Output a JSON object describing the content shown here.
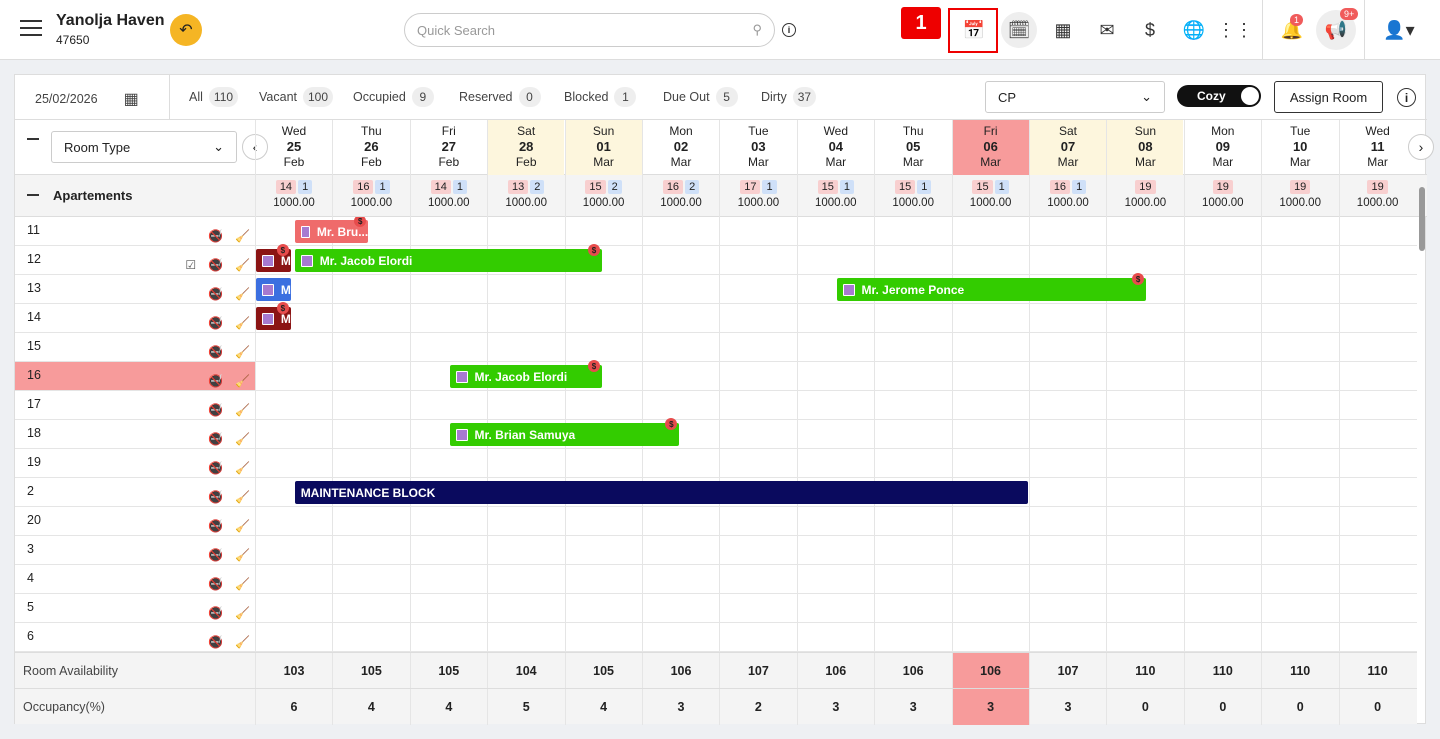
{
  "header": {
    "property_name": "Yanolja Haven",
    "property_id": "47650",
    "search_placeholder": "Quick Search",
    "annotation_tag": "1",
    "notif_count": "1",
    "announce_count": "9+"
  },
  "filters": {
    "date": "25/02/2026",
    "items": [
      {
        "label": "All",
        "count": "110"
      },
      {
        "label": "Vacant",
        "count": "100"
      },
      {
        "label": "Occupied",
        "count": "9"
      },
      {
        "label": "Reserved",
        "count": "0"
      },
      {
        "label": "Blocked",
        "count": "1"
      },
      {
        "label": "Due Out",
        "count": "5"
      },
      {
        "label": "Dirty",
        "count": "37"
      }
    ],
    "rate_plan": "CP",
    "view_toggle": "Cozy",
    "assign_btn": "Assign Room"
  },
  "grid": {
    "room_type_label": "Room Type",
    "group_name": "Apartements",
    "days": [
      {
        "wd": "Wed",
        "d": "25",
        "m": "Feb",
        "t": ""
      },
      {
        "wd": "Thu",
        "d": "26",
        "m": "Feb",
        "t": ""
      },
      {
        "wd": "Fri",
        "d": "27",
        "m": "Feb",
        "t": ""
      },
      {
        "wd": "Sat",
        "d": "28",
        "m": "Feb",
        "t": "w"
      },
      {
        "wd": "Sun",
        "d": "01",
        "m": "Mar",
        "t": "w"
      },
      {
        "wd": "Mon",
        "d": "02",
        "m": "Mar",
        "t": ""
      },
      {
        "wd": "Tue",
        "d": "03",
        "m": "Mar",
        "t": ""
      },
      {
        "wd": "Wed",
        "d": "04",
        "m": "Mar",
        "t": ""
      },
      {
        "wd": "Thu",
        "d": "05",
        "m": "Mar",
        "t": ""
      },
      {
        "wd": "Fri",
        "d": "06",
        "m": "Mar",
        "t": "today"
      },
      {
        "wd": "Sat",
        "d": "07",
        "m": "Mar",
        "t": "w"
      },
      {
        "wd": "Sun",
        "d": "08",
        "m": "Mar",
        "t": "w"
      },
      {
        "wd": "Mon",
        "d": "09",
        "m": "Mar",
        "t": ""
      },
      {
        "wd": "Tue",
        "d": "10",
        "m": "Mar",
        "t": ""
      },
      {
        "wd": "Wed",
        "d": "11",
        "m": "Mar",
        "t": ""
      }
    ],
    "group_avail": [
      {
        "a": "14",
        "b": "1",
        "r": "1000.00"
      },
      {
        "a": "16",
        "b": "1",
        "r": "1000.00"
      },
      {
        "a": "14",
        "b": "1",
        "r": "1000.00"
      },
      {
        "a": "13",
        "b": "2",
        "r": "1000.00"
      },
      {
        "a": "15",
        "b": "2",
        "r": "1000.00"
      },
      {
        "a": "16",
        "b": "2",
        "r": "1000.00"
      },
      {
        "a": "17",
        "b": "1",
        "r": "1000.00"
      },
      {
        "a": "15",
        "b": "1",
        "r": "1000.00"
      },
      {
        "a": "15",
        "b": "1",
        "r": "1000.00"
      },
      {
        "a": "15",
        "b": "1",
        "r": "1000.00"
      },
      {
        "a": "16",
        "b": "1",
        "r": "1000.00"
      },
      {
        "a": "19",
        "b": "",
        "r": "1000.00"
      },
      {
        "a": "19",
        "b": "",
        "r": "1000.00"
      },
      {
        "a": "19",
        "b": "",
        "r": "1000.00"
      },
      {
        "a": "19",
        "b": "",
        "r": "1000.00"
      }
    ],
    "rooms": [
      "11",
      "12",
      "13",
      "14",
      "15",
      "16",
      "17",
      "18",
      "19",
      "2",
      "20",
      "3",
      "4",
      "5",
      "6"
    ],
    "bookings": [
      {
        "row": 0,
        "start": 0.5,
        "len": 0.95,
        "label": "Mr. Bru...",
        "color": "#ef6b6b",
        "dol": true
      },
      {
        "row": 1,
        "start": 0,
        "len": 0.45,
        "label": "M",
        "color": "#8b1414",
        "dol": true
      },
      {
        "row": 1,
        "start": 0.5,
        "len": 3.97,
        "label": "Mr. Jacob Elordi",
        "color": "#33cc00",
        "dol": true
      },
      {
        "row": 2,
        "start": 0,
        "len": 0.45,
        "label": "M",
        "color": "#3b6fe0",
        "dol": false
      },
      {
        "row": 2,
        "start": 7.5,
        "len": 4.0,
        "label": "Mr. Jerome Ponce",
        "color": "#33cc00",
        "dol": true
      },
      {
        "row": 3,
        "start": 0,
        "len": 0.45,
        "label": "M",
        "color": "#8b1414",
        "dol": true
      },
      {
        "row": 5,
        "start": 2.5,
        "len": 1.97,
        "label": "Mr. Jacob Elordi",
        "color": "#33cc00",
        "dol": true
      },
      {
        "row": 7,
        "start": 2.5,
        "len": 2.97,
        "label": "Mr. Brian Samuya",
        "color": "#33cc00",
        "dol": true
      },
      {
        "row": 9,
        "start": 0.5,
        "len": 9.48,
        "label": "MAINTENANCE BLOCK",
        "color": "#0a0a5e",
        "dol": false
      }
    ],
    "footer": {
      "availability_label": "Room Availability",
      "availability": [
        "103",
        "105",
        "105",
        "104",
        "105",
        "106",
        "107",
        "106",
        "106",
        "106",
        "107",
        "110",
        "110",
        "110",
        "110"
      ],
      "occupancy_label": "Occupancy(%)",
      "occupancy": [
        "6",
        "4",
        "4",
        "5",
        "4",
        "3",
        "2",
        "3",
        "3",
        "3",
        "3",
        "0",
        "0",
        "0",
        "0"
      ]
    }
  }
}
